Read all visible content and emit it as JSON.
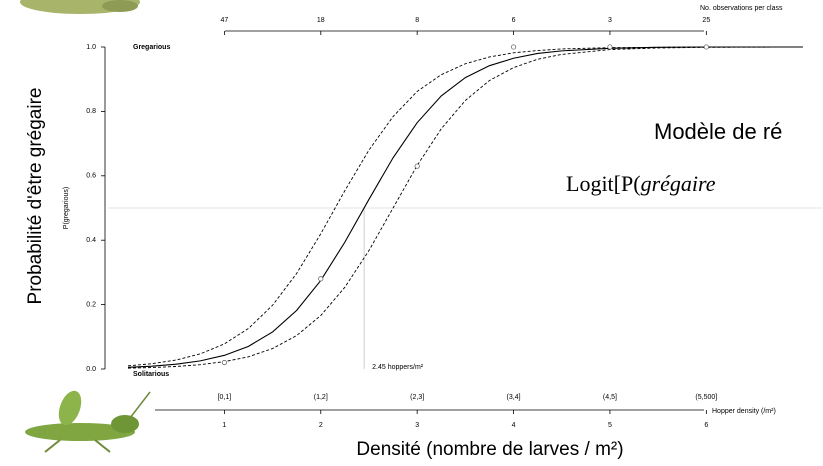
{
  "chart_data": {
    "type": "line",
    "y_label": "Probabilité d'être grégaire",
    "y_label_inner": "P(gregarious)",
    "x_label": "Densité (nombre de larves / m²)",
    "x_label_inner": "Hopper density (/m²)",
    "top_axis_title": "No. observations per class",
    "upper_note": "Gregarious",
    "lower_note": "Solitarious",
    "slide_text": [
      "Modèle de ré",
      "Logit[P(",
      "grégaire"
    ],
    "xlim": [
      0,
      7.2
    ],
    "ylim": [
      0,
      1
    ],
    "xticks": [
      1,
      2,
      3,
      4,
      5,
      6
    ],
    "yticks": [
      {
        "value": 0,
        "label": "0.0"
      },
      {
        "value": 0.2,
        "label": "0.2"
      },
      {
        "value": 0.4,
        "label": "0.4"
      },
      {
        "value": 0.6,
        "label": "0.6"
      },
      {
        "value": 0.8,
        "label": "0.8"
      },
      {
        "value": 1,
        "label": "1.0"
      }
    ],
    "x": [
      0,
      0.25,
      0.5,
      0.75,
      1,
      1.25,
      1.5,
      1.75,
      2,
      2.25,
      2.5,
      2.75,
      3,
      3.25,
      3.5,
      3.75,
      4,
      4.25,
      4.5,
      5,
      5.5,
      6,
      7
    ],
    "series": [
      {
        "style": "solid",
        "color": "#000000",
        "values": [
          0.0051,
          0.0088,
          0.0149,
          0.0252,
          0.0424,
          0.0704,
          0.115,
          0.182,
          0.275,
          0.394,
          0.527,
          0.656,
          0.765,
          0.848,
          0.905,
          0.942,
          0.965,
          0.98,
          0.988,
          0.996,
          0.999,
          1.0,
          1.0
        ]
      },
      {
        "style": "dashed",
        "color": "#000000",
        "values": [
          0.0098,
          0.0165,
          0.028,
          0.047,
          0.078,
          0.126,
          0.198,
          0.297,
          0.42,
          0.554,
          0.68,
          0.784,
          0.862,
          0.914,
          0.948,
          0.969,
          0.982,
          0.989,
          0.994,
          0.998,
          0.999,
          1.0,
          1.0
        ]
      },
      {
        "style": "dashed",
        "color": "#000000",
        "values": [
          0.0027,
          0.0046,
          0.0078,
          0.0134,
          0.0228,
          0.038,
          0.0635,
          0.104,
          0.166,
          0.254,
          0.368,
          0.5,
          0.632,
          0.746,
          0.834,
          0.896,
          0.936,
          0.962,
          0.977,
          0.992,
          0.997,
          0.999,
          1.0
        ]
      }
    ],
    "observations": {
      "x": [
        1,
        2,
        3,
        4,
        5,
        6
      ],
      "values": [
        0.02,
        0.28,
        0.63,
        1.0,
        1.0,
        1.0
      ],
      "counts": [
        47,
        18,
        8,
        6,
        3,
        25
      ],
      "classes": [
        "[0,1]",
        "(1,2]",
        "(2,3]",
        "(3,4]",
        "(4,5]",
        "(5,500]"
      ]
    },
    "threshold": {
      "x": 2.45,
      "p": 0.5,
      "label": "2.45 hoppers/m²"
    }
  }
}
